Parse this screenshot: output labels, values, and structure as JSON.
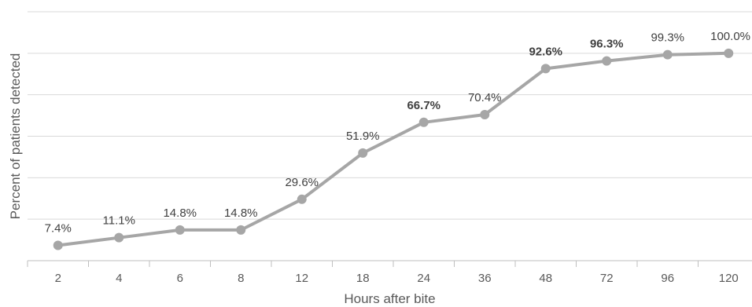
{
  "chart_data": {
    "type": "line",
    "title": "",
    "xlabel": "Hours after bite",
    "ylabel": "Percent of patients detected",
    "categories": [
      "2",
      "4",
      "6",
      "8",
      "12",
      "18",
      "24",
      "36",
      "48",
      "72",
      "96",
      "120"
    ],
    "series": [
      {
        "values": [
          7.4,
          11.1,
          14.8,
          14.8,
          29.6,
          51.9,
          66.7,
          70.4,
          92.6,
          96.3,
          99.3,
          100.0
        ],
        "labels": [
          "7.4%",
          "11.1%",
          "14.8%",
          "14.8%",
          "29.6%",
          "51.9%",
          "66.7%",
          "70.4%",
          "92.6%",
          "96.3%",
          "99.3%",
          "100.0%"
        ],
        "bold_labels": [
          false,
          false,
          false,
          false,
          false,
          false,
          true,
          false,
          true,
          true,
          false,
          false
        ],
        "color": "#a6a6a6"
      }
    ],
    "ylim": [
      0,
      120
    ],
    "grid": true,
    "legend": "none"
  }
}
